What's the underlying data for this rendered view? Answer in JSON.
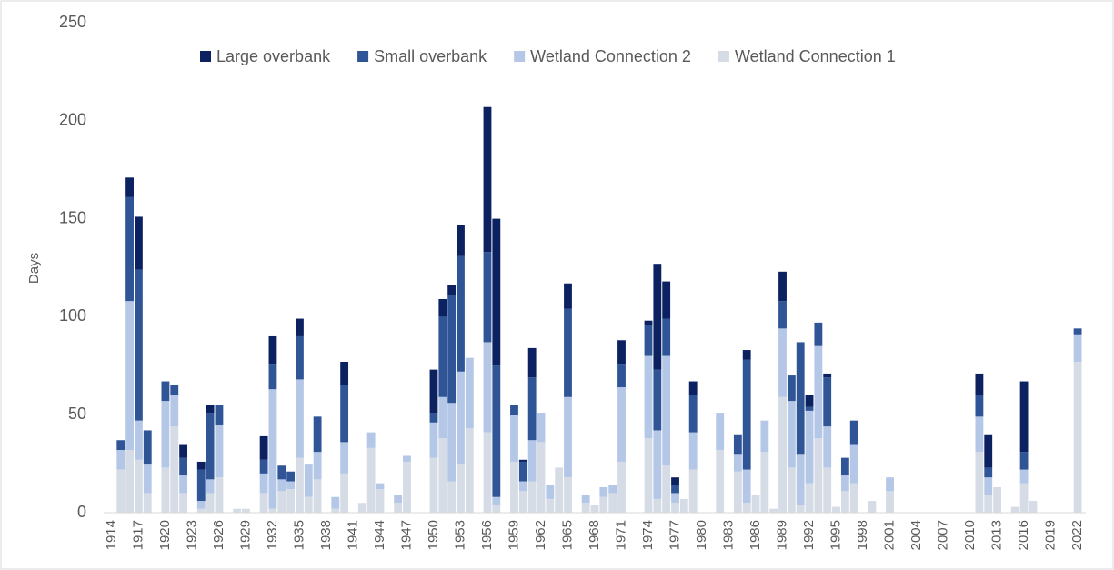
{
  "chart_data": {
    "type": "bar",
    "stacked": true,
    "ylabel": "Days",
    "categories": [
      "1914",
      null,
      null,
      "1917",
      null,
      null,
      "1920",
      null,
      null,
      "1923",
      null,
      null,
      "1926",
      null,
      null,
      "1929",
      null,
      null,
      "1932",
      null,
      null,
      "1935",
      null,
      null,
      "1938",
      null,
      null,
      "1941",
      null,
      null,
      "1944",
      null,
      null,
      "1947",
      null,
      null,
      "1950",
      null,
      null,
      "1953",
      null,
      null,
      "1956",
      null,
      null,
      "1959",
      null,
      null,
      "1962",
      null,
      null,
      "1965",
      null,
      null,
      "1968",
      null,
      null,
      "1971",
      null,
      null,
      "1974",
      null,
      null,
      "1977",
      null,
      null,
      "1980",
      null,
      null,
      "1983",
      null,
      null,
      "1986",
      null,
      null,
      "1989",
      null,
      null,
      "1992",
      null,
      null,
      "1995",
      null,
      null,
      "1998",
      null,
      null,
      "2001",
      null,
      null,
      "2004",
      null,
      null,
      "2007",
      null,
      null,
      "2010",
      null,
      null,
      "2013",
      null,
      null,
      "2016",
      null,
      null,
      "2019",
      null,
      null,
      "2022"
    ],
    "series": [
      {
        "name": "Large overbank",
        "color": "#0b2160",
        "values": [
          0,
          0,
          10,
          27,
          0,
          0,
          0,
          0,
          7,
          0,
          4,
          4,
          0,
          0,
          0,
          0,
          0,
          12,
          14,
          0,
          0,
          9,
          0,
          0,
          0,
          0,
          12,
          0,
          0,
          0,
          0,
          0,
          0,
          0,
          0,
          0,
          22,
          9,
          5,
          16,
          0,
          0,
          74,
          75,
          0,
          0,
          1,
          15,
          0,
          0,
          0,
          13,
          0,
          0,
          0,
          0,
          0,
          12,
          0,
          0,
          2,
          54,
          19,
          4,
          0,
          7,
          0,
          0,
          0,
          0,
          0,
          5,
          0,
          0,
          0,
          15,
          0,
          0,
          6,
          0,
          2,
          0,
          0,
          0,
          0,
          0,
          0,
          0,
          0,
          0,
          0,
          0,
          0,
          0,
          0,
          0,
          0,
          11,
          17,
          0,
          0,
          0,
          36,
          0,
          0,
          0,
          0,
          0,
          0
        ]
      },
      {
        "name": "Small overbank",
        "color": "#2f5597",
        "values": [
          0,
          5,
          53,
          77,
          17,
          0,
          10,
          5,
          9,
          0,
          16,
          34,
          10,
          0,
          0,
          0,
          0,
          7,
          13,
          7,
          5,
          22,
          0,
          18,
          0,
          0,
          29,
          0,
          0,
          0,
          0,
          0,
          0,
          0,
          0,
          0,
          5,
          41,
          55,
          59,
          0,
          0,
          46,
          67,
          0,
          5,
          10,
          32,
          0,
          0,
          0,
          45,
          0,
          0,
          0,
          0,
          0,
          12,
          0,
          0,
          16,
          31,
          19,
          4,
          0,
          19,
          0,
          0,
          0,
          0,
          10,
          56,
          0,
          0,
          0,
          14,
          13,
          57,
          2,
          12,
          25,
          0,
          9,
          12,
          0,
          0,
          0,
          0,
          0,
          0,
          0,
          0,
          0,
          0,
          0,
          0,
          0,
          11,
          5,
          0,
          0,
          0,
          9,
          0,
          0,
          0,
          0,
          0,
          3
        ]
      },
      {
        "name": "Wetland Connection 2",
        "color": "#b4c7e7",
        "values": [
          0,
          10,
          76,
          20,
          15,
          0,
          34,
          16,
          9,
          0,
          4,
          7,
          27,
          0,
          0,
          0,
          0,
          10,
          61,
          6,
          4,
          40,
          17,
          14,
          0,
          6,
          16,
          0,
          0,
          8,
          3,
          0,
          4,
          3,
          0,
          0,
          18,
          21,
          40,
          47,
          36,
          0,
          46,
          4,
          0,
          24,
          5,
          21,
          15,
          7,
          0,
          41,
          0,
          4,
          0,
          5,
          4,
          38,
          0,
          0,
          42,
          35,
          56,
          5,
          0,
          19,
          0,
          0,
          19,
          0,
          9,
          17,
          0,
          16,
          0,
          35,
          34,
          26,
          37,
          47,
          21,
          0,
          8,
          20,
          0,
          0,
          0,
          7,
          0,
          0,
          0,
          0,
          0,
          0,
          0,
          0,
          0,
          18,
          9,
          0,
          0,
          0,
          7,
          0,
          0,
          0,
          0,
          0,
          14
        ]
      },
      {
        "name": "Wetland Connection 1",
        "color": "#d6dce5",
        "values": [
          0,
          22,
          32,
          27,
          10,
          0,
          23,
          44,
          10,
          0,
          2,
          10,
          18,
          0,
          2,
          2,
          0,
          10,
          2,
          11,
          12,
          28,
          8,
          17,
          0,
          2,
          20,
          0,
          5,
          33,
          12,
          0,
          5,
          26,
          0,
          0,
          28,
          38,
          16,
          25,
          43,
          0,
          41,
          4,
          0,
          26,
          11,
          16,
          36,
          7,
          23,
          18,
          0,
          5,
          4,
          8,
          10,
          26,
          0,
          0,
          38,
          7,
          24,
          5,
          7,
          22,
          0,
          0,
          32,
          0,
          21,
          5,
          9,
          31,
          2,
          59,
          23,
          4,
          15,
          38,
          23,
          3,
          11,
          15,
          0,
          6,
          0,
          11,
          0,
          0,
          0,
          0,
          0,
          0,
          0,
          0,
          0,
          31,
          9,
          13,
          0,
          3,
          15,
          6,
          0,
          0,
          0,
          0,
          77
        ]
      }
    ],
    "ylim": [
      0,
      250
    ],
    "yticks": [
      0,
      50,
      100,
      150,
      200,
      250
    ],
    "grid": false,
    "legend": "top"
  }
}
